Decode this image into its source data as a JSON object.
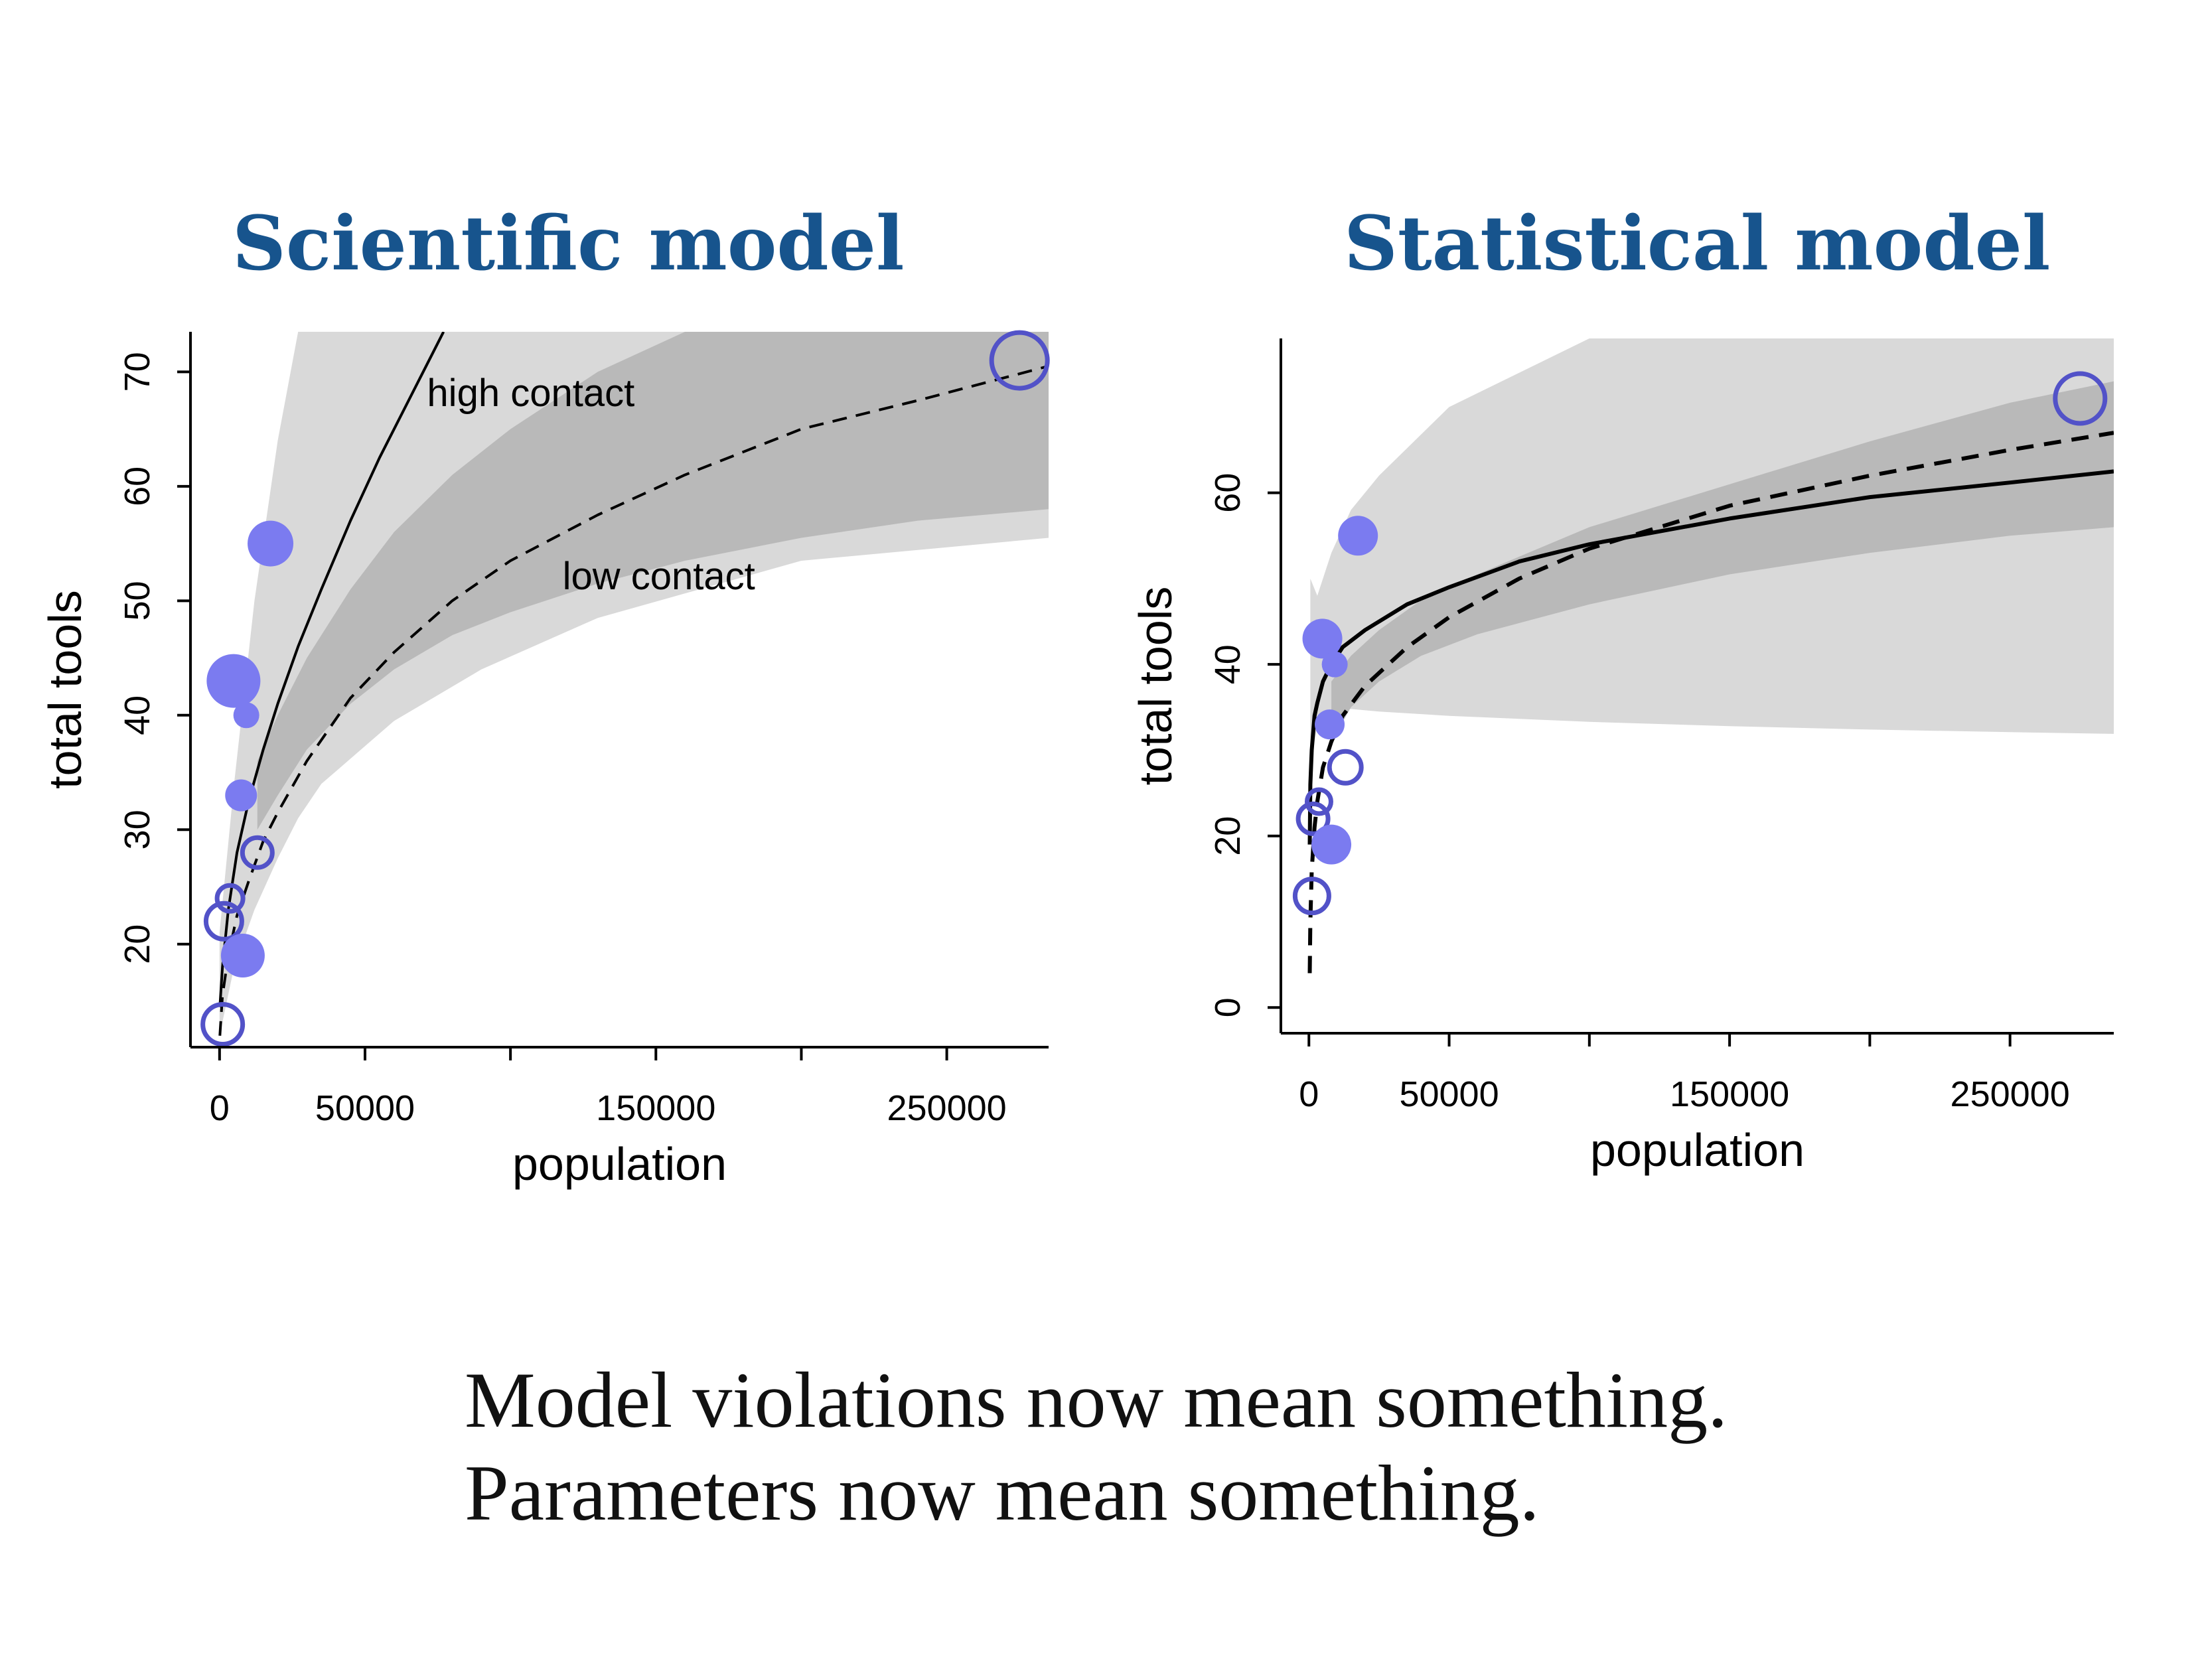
{
  "titles": {
    "left": "Scientific model",
    "right": "Statistical model"
  },
  "captions": {
    "line1": "Model violations now mean something.",
    "line2": "Parameters now mean something."
  },
  "colors": {
    "point": "#7b7bf0",
    "point_outline": "#5252c8",
    "band_outer": "#d9d9d9",
    "band_inner": "#b9b9b9",
    "title": "#17548d"
  },
  "chart_data": [
    {
      "type": "line",
      "title": "Scientific model",
      "xlabel": "population",
      "ylabel": "total tools",
      "xlim": [
        -10000,
        285000
      ],
      "ylim": [
        11,
        73.5
      ],
      "xticks": [
        0,
        50000,
        100000,
        150000,
        200000,
        250000
      ],
      "xticklabels": [
        "0",
        "50000",
        "",
        "150000",
        "",
        "250000"
      ],
      "yticks": [
        20,
        30,
        40,
        50,
        60,
        70
      ],
      "yticklabels": [
        "20",
        "30",
        "40",
        "50",
        "60",
        "70"
      ],
      "grid": false,
      "annotations": [
        {
          "text": "high contact",
          "x": 107000,
          "y": 67
        },
        {
          "text": "low contact",
          "x": 151000,
          "y": 51
        }
      ],
      "series": [
        {
          "name": "high contact",
          "style": "solid",
          "x": [
            100,
            1000,
            3000,
            6000,
            10000,
            15000,
            20000,
            27000,
            35000,
            45000,
            55000,
            65000,
            75000,
            77000
          ],
          "y": [
            14.5,
            18,
            23,
            28,
            32.5,
            37,
            41,
            46,
            51,
            57,
            62.5,
            67.5,
            72.5,
            73.5
          ]
        },
        {
          "name": "low contact",
          "style": "dashed",
          "x": [
            100,
            1000,
            3000,
            6000,
            10000,
            15000,
            20000,
            30000,
            45000,
            60000,
            80000,
            100000,
            130000,
            160000,
            200000,
            240000,
            285000
          ],
          "y": [
            12,
            15.5,
            19,
            22.5,
            25.5,
            29,
            31.5,
            36,
            41.5,
            45.5,
            50,
            53.5,
            57.5,
            61,
            65,
            67.5,
            70.5
          ]
        }
      ],
      "bands": [
        {
          "shade": "outer",
          "x": [
            0,
            5000,
            12000,
            20000,
            27000,
            35000,
            60000,
            90000,
            130000,
            200000,
            285000
          ],
          "lower": [
            12,
            18,
            23,
            27.5,
            31,
            34,
            39.5,
            44,
            48.5,
            53.5,
            55.5
          ],
          "upper": [
            21,
            34,
            50,
            64,
            73.5,
            73.5,
            73.5,
            73.5,
            73.5,
            73.5,
            73.5
          ]
        },
        {
          "shade": "inner",
          "x": [
            13000,
            20000,
            30000,
            45000,
            60000,
            80000,
            100000,
            130000,
            160000,
            200000,
            240000,
            285000
          ],
          "lower": [
            30,
            33,
            37,
            41,
            44,
            47,
            49,
            51.5,
            53.5,
            55.5,
            57,
            58
          ],
          "upper": [
            36,
            40,
            45,
            51,
            56,
            61,
            65,
            70,
            73.5,
            73.5,
            73.5,
            73.5
          ]
        }
      ],
      "points": [
        {
          "x": 1100,
          "y": 13,
          "size": 1.1,
          "filled": false
        },
        {
          "x": 1500,
          "y": 22,
          "size": 1.0,
          "filled": false
        },
        {
          "x": 3600,
          "y": 24,
          "size": 0.75,
          "filled": false
        },
        {
          "x": 4800,
          "y": 43,
          "size": 1.35,
          "filled": true
        },
        {
          "x": 7400,
          "y": 33,
          "size": 0.8,
          "filled": true
        },
        {
          "x": 8000,
          "y": 19,
          "size": 1.1,
          "filled": true
        },
        {
          "x": 9200,
          "y": 40,
          "size": 0.65,
          "filled": true
        },
        {
          "x": 13000,
          "y": 28,
          "size": 0.85,
          "filled": false
        },
        {
          "x": 17500,
          "y": 55,
          "size": 1.15,
          "filled": true
        },
        {
          "x": 275000,
          "y": 71,
          "size": 1.5,
          "filled": false
        }
      ]
    },
    {
      "type": "line",
      "title": "Statistical model",
      "xlabel": "population",
      "ylabel": "total tools",
      "xlim": [
        -10000,
        287000
      ],
      "ylim": [
        -3,
        78
      ],
      "xticks": [
        0,
        50000,
        100000,
        150000,
        200000,
        250000
      ],
      "xticklabels": [
        "0",
        "50000",
        "",
        "150000",
        "",
        "250000"
      ],
      "yticks": [
        0,
        20,
        40,
        60
      ],
      "yticklabels": [
        "0",
        "20",
        "40",
        "60"
      ],
      "grid": false,
      "series": [
        {
          "name": "",
          "style": "solid",
          "x": [
            300,
            500,
            1000,
            2000,
            3000,
            5000,
            8000,
            12000,
            20000,
            35000,
            50000,
            75000,
            100000,
            150000,
            200000,
            250000,
            287000
          ],
          "y": [
            19,
            26,
            30,
            34,
            35.5,
            38,
            40,
            42,
            44,
            47,
            49,
            52,
            54,
            57,
            59.5,
            61.2,
            62.5
          ]
        },
        {
          "name": "",
          "style": "dashed",
          "x": [
            300,
            500,
            1000,
            2000,
            3000,
            5000,
            8000,
            12000,
            20000,
            35000,
            50000,
            75000,
            100000,
            150000,
            200000,
            250000,
            287000
          ],
          "y": [
            4,
            10,
            16,
            21,
            24,
            28,
            31,
            34,
            37.5,
            42,
            45.5,
            50,
            53.5,
            58.5,
            62,
            65,
            67
          ]
        }
      ],
      "bands": [
        {
          "shade": "outer",
          "x": [
            500,
            3000,
            8000,
            15000,
            25000,
            50000,
            100000,
            150000,
            200000,
            250000,
            287000
          ],
          "lower": [
            28,
            33,
            34.5,
            34.8,
            34.5,
            34,
            33.3,
            32.8,
            32.4,
            32.1,
            31.9
          ],
          "upper": [
            50,
            48,
            53,
            58,
            62,
            70,
            78,
            78,
            78,
            78,
            78
          ]
        },
        {
          "shade": "inner",
          "x": [
            8000,
            15000,
            25000,
            40000,
            60000,
            100000,
            150000,
            200000,
            250000,
            287000
          ],
          "lower": [
            31,
            35,
            38,
            41,
            43.5,
            47,
            50.5,
            53,
            55,
            56
          ],
          "upper": [
            38,
            41,
            44,
            47.5,
            50.5,
            56,
            61,
            66,
            70.5,
            73
          ]
        }
      ],
      "points": [
        {
          "x": 1100,
          "y": 13,
          "size": 0.95,
          "filled": false
        },
        {
          "x": 1500,
          "y": 22,
          "size": 0.85,
          "filled": false
        },
        {
          "x": 3600,
          "y": 24,
          "size": 0.7,
          "filled": false
        },
        {
          "x": 4800,
          "y": 43,
          "size": 1.0,
          "filled": true
        },
        {
          "x": 7400,
          "y": 33,
          "size": 0.75,
          "filled": true
        },
        {
          "x": 8000,
          "y": 19,
          "size": 1.0,
          "filled": true
        },
        {
          "x": 9200,
          "y": 40,
          "size": 0.65,
          "filled": true
        },
        {
          "x": 13000,
          "y": 28,
          "size": 0.9,
          "filled": false
        },
        {
          "x": 17500,
          "y": 55,
          "size": 1.0,
          "filled": true
        },
        {
          "x": 275000,
          "y": 71,
          "size": 1.35,
          "filled": false
        }
      ]
    }
  ]
}
